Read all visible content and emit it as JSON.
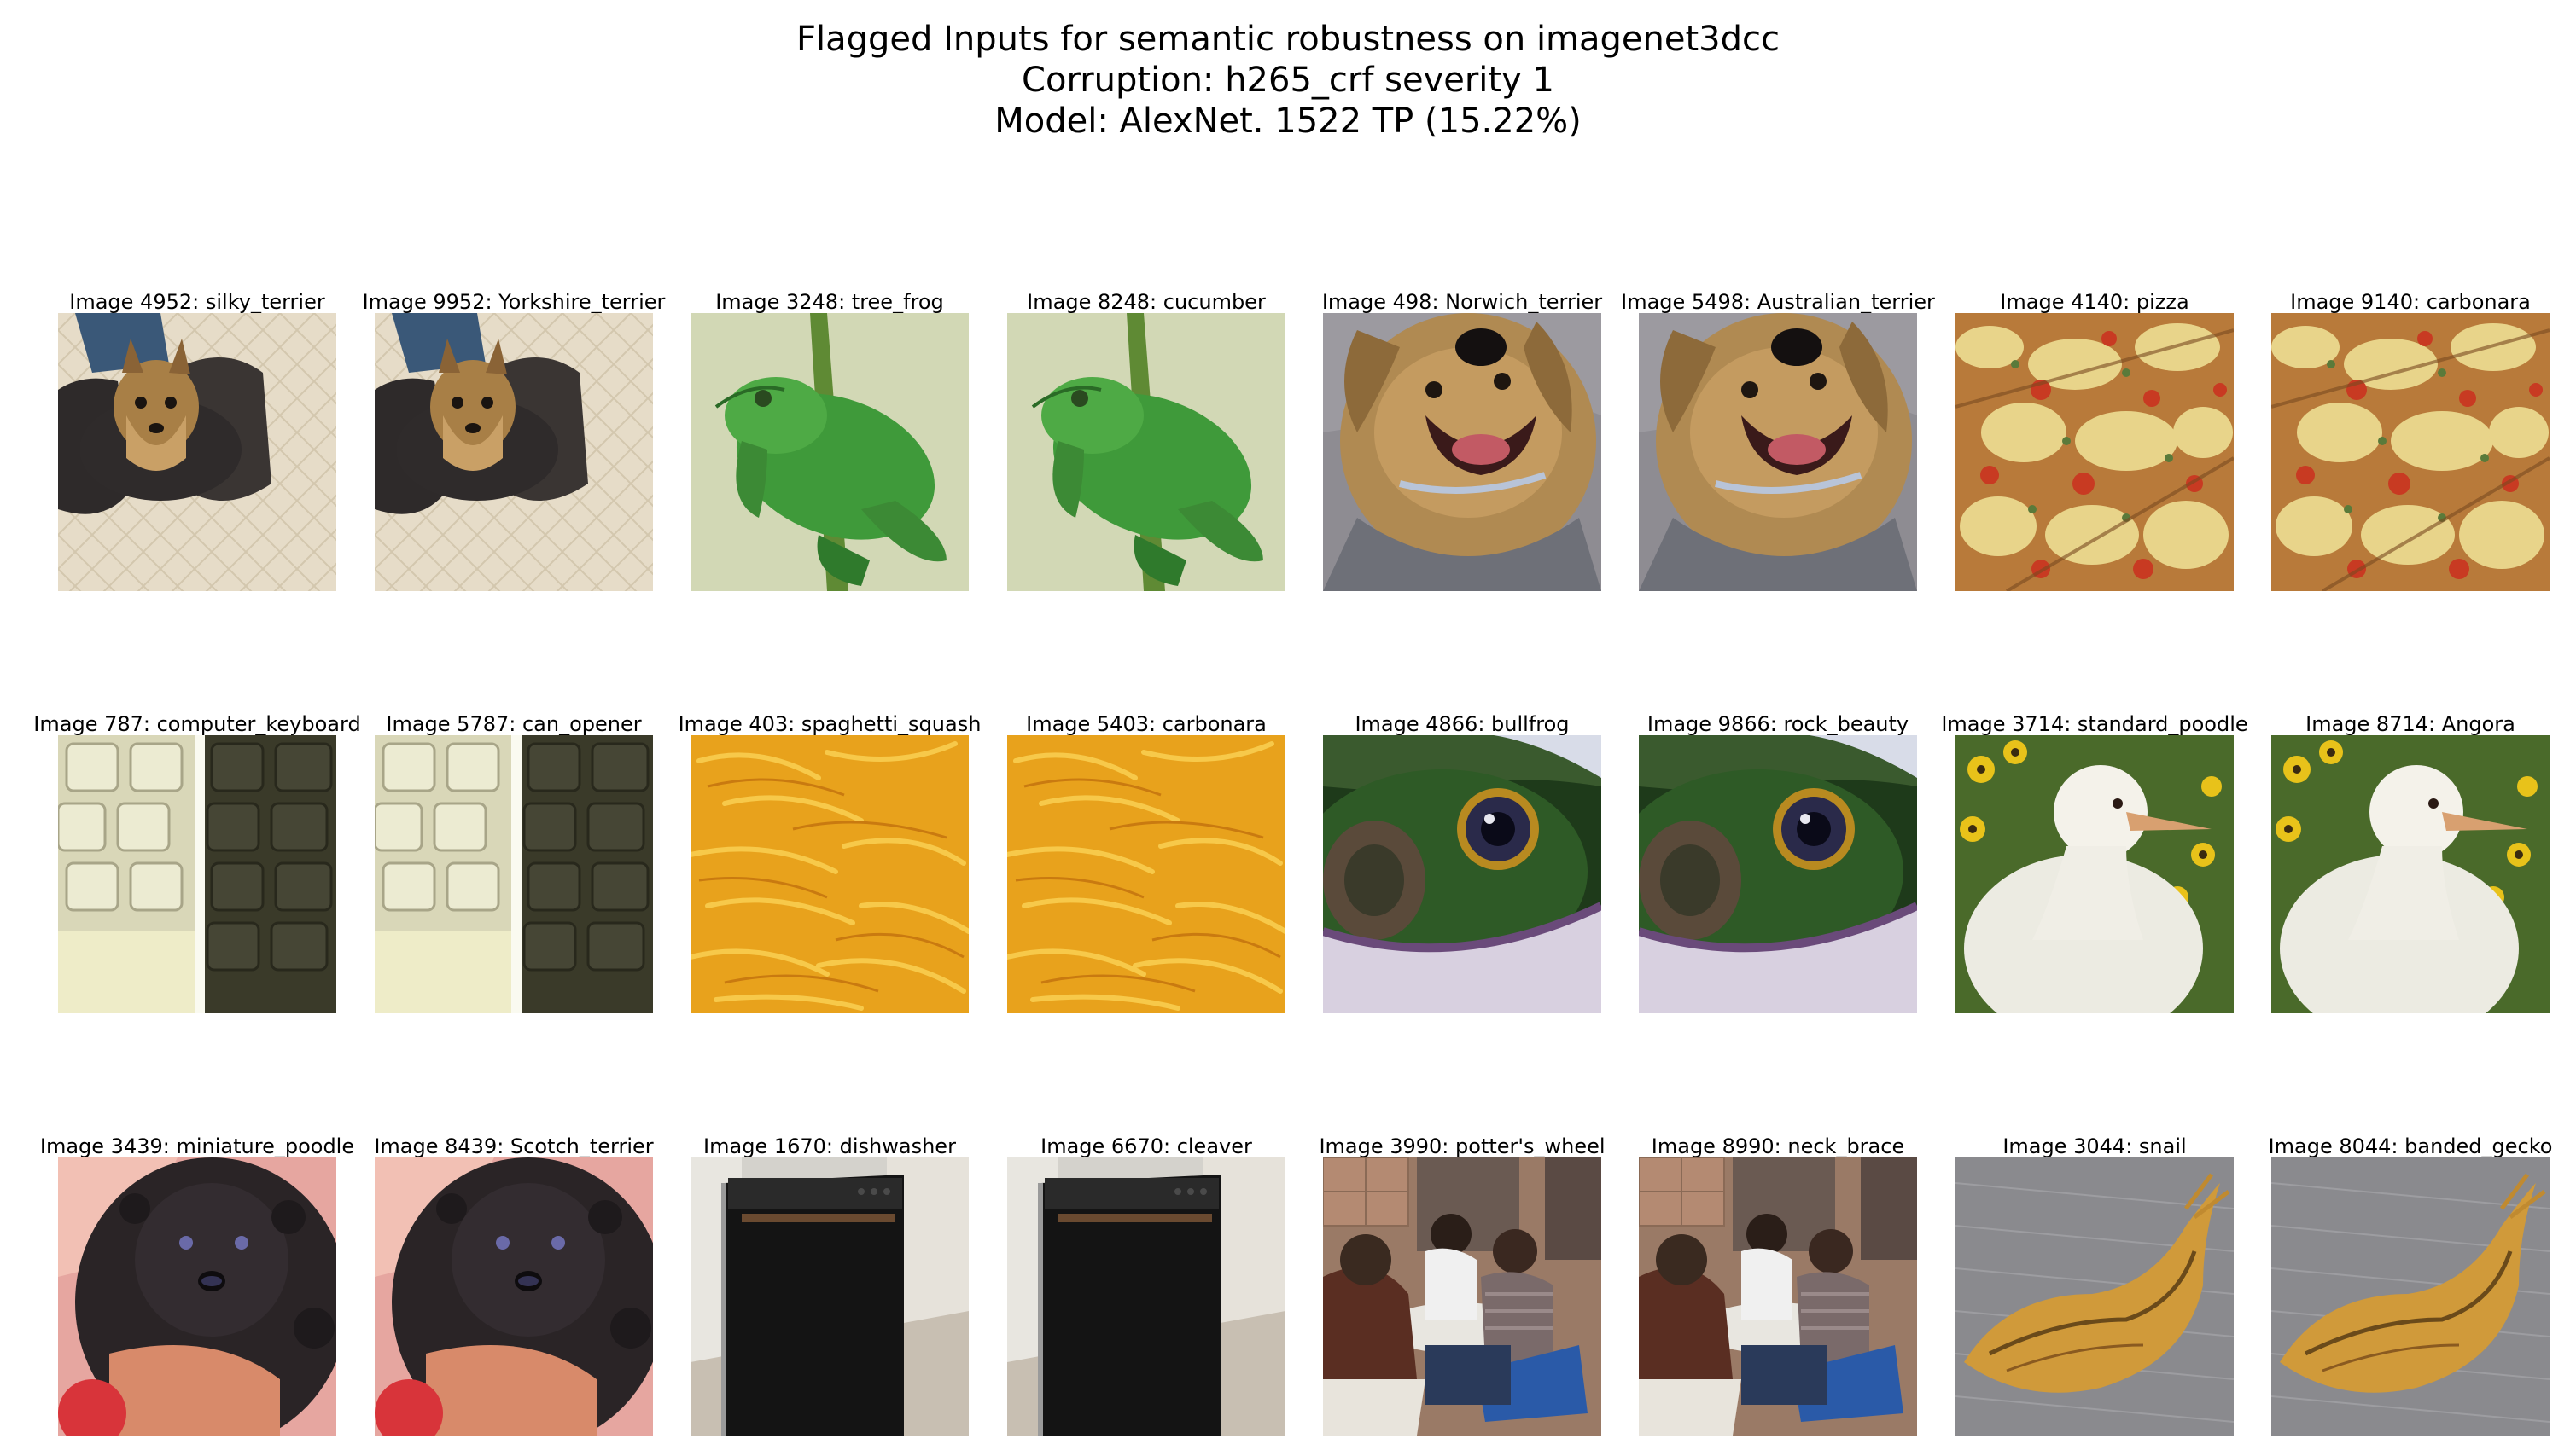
{
  "figure": {
    "title_lines": [
      "Flagged Inputs for semantic robustness on imagenet3dcc",
      "Corruption: h265_crf severity 1",
      "Model: AlexNet. 1522 TP (15.22%)"
    ]
  },
  "rows": [
    [
      {
        "label": "Image 4952: silky_terrier",
        "scene": "terrier-floor"
      },
      {
        "label": "Image 9952: Yorkshire_terrier",
        "scene": "terrier-floor"
      },
      {
        "label": "Image 3248: tree_frog",
        "scene": "green-frog"
      },
      {
        "label": "Image 8248: cucumber",
        "scene": "green-frog"
      },
      {
        "label": "Image 498: Norwich_terrier",
        "scene": "shaggy-dog"
      },
      {
        "label": "Image 5498: Australian_terrier",
        "scene": "shaggy-dog"
      },
      {
        "label": "Image 4140: pizza",
        "scene": "pizza"
      },
      {
        "label": "Image 9140: carbonara",
        "scene": "pizza"
      }
    ],
    [
      {
        "label": "Image 787: computer_keyboard",
        "scene": "keyboard"
      },
      {
        "label": "Image 5787: can_opener",
        "scene": "keyboard"
      },
      {
        "label": "Image 403: spaghetti_squash",
        "scene": "squash"
      },
      {
        "label": "Image 5403: carbonara",
        "scene": "squash"
      },
      {
        "label": "Image 4866: bullfrog",
        "scene": "bullfrog-eye"
      },
      {
        "label": "Image 9866: rock_beauty",
        "scene": "bullfrog-eye"
      },
      {
        "label": "Image 3714: standard_poodle",
        "scene": "white-chick"
      },
      {
        "label": "Image 8714: Angora",
        "scene": "white-chick"
      }
    ],
    [
      {
        "label": "Image 3439: miniature_poodle",
        "scene": "black-poodle"
      },
      {
        "label": "Image 8439: Scotch_terrier",
        "scene": "black-poodle"
      },
      {
        "label": "Image 1670: dishwasher",
        "scene": "dishwasher"
      },
      {
        "label": "Image 6670: cleaver",
        "scene": "dishwasher"
      },
      {
        "label": "Image 3990: potter's_wheel",
        "scene": "people-patio"
      },
      {
        "label": "Image 8990: neck_brace",
        "scene": "people-patio"
      },
      {
        "label": "Image 3044: snail",
        "scene": "slug"
      },
      {
        "label": "Image 8044: banded_gecko",
        "scene": "slug"
      }
    ]
  ]
}
